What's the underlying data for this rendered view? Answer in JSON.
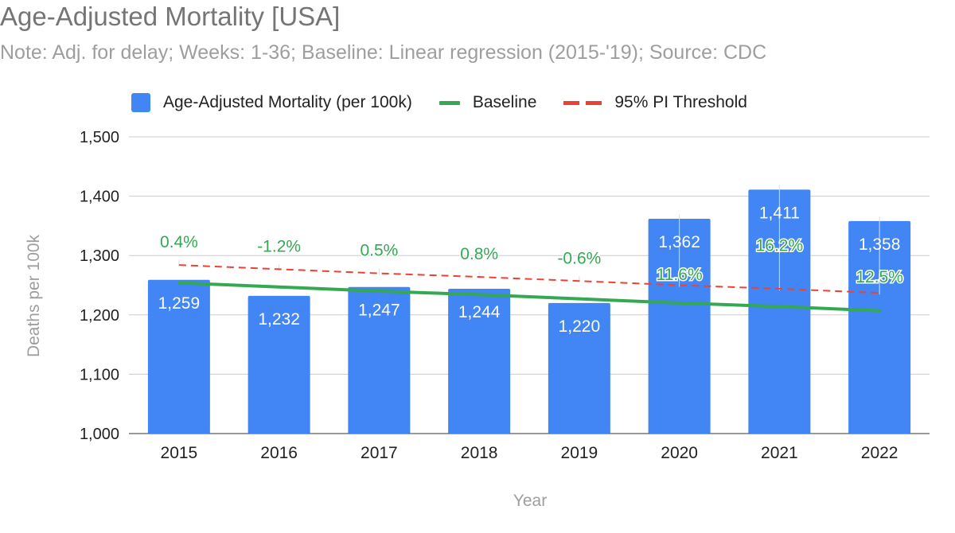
{
  "title": "Age-Adjusted Mortality [USA]",
  "subtitle": "Note: Adj. for delay; Weeks: 1-36; Baseline: Linear regression (2015-'19); Source: CDC",
  "colors": {
    "bars": "#4285f4",
    "baseline": "#34a853",
    "threshold": "#ea4335",
    "pct_label": "#34a853",
    "grid": "#cccccc",
    "axis_title": "#9e9e9e"
  },
  "legend": {
    "bars": "Age-Adjusted Mortality (per 100k)",
    "baseline": "Baseline",
    "threshold": "95% PI Threshold"
  },
  "chart_data": {
    "type": "bar",
    "title": "Age-Adjusted Mortality [USA]",
    "subtitle": "Note: Adj. for delay; Weeks: 1-36; Baseline: Linear regression (2015-'19); Source: CDC",
    "xlabel": "Year",
    "ylabel": "Deaths per 100k",
    "ylim": [
      1000,
      1500
    ],
    "yticks": [
      1000,
      1100,
      1200,
      1300,
      1400,
      1500
    ],
    "ytick_labels": [
      "1,000",
      "1,100",
      "1,200",
      "1,300",
      "1,400",
      "1,500"
    ],
    "grid": true,
    "legend_position": "top",
    "categories": [
      "2015",
      "2016",
      "2017",
      "2018",
      "2019",
      "2020",
      "2021",
      "2022"
    ],
    "series": [
      {
        "name": "Age-Adjusted Mortality (per 100k)",
        "type": "bar",
        "values": [
          1259,
          1232,
          1247,
          1244,
          1220,
          1362,
          1411,
          1358
        ],
        "labels": [
          "1,259",
          "1,232",
          "1,247",
          "1,244",
          "1,220",
          "1,362",
          "1,411",
          "1,358"
        ]
      },
      {
        "name": "Baseline",
        "type": "line",
        "values": [
          1254,
          1247,
          1240,
          1234,
          1227,
          1220,
          1214,
          1207
        ]
      },
      {
        "name": "95% PI Threshold",
        "type": "line",
        "style": "dashed",
        "values": [
          1284,
          1277,
          1270,
          1264,
          1257,
          1250,
          1244,
          1237
        ]
      }
    ],
    "excess_labels": [
      "0.4%",
      "-1.2%",
      "0.5%",
      "0.8%",
      "-0.6%",
      "11.6%",
      "16.2%",
      "12.5%"
    ]
  }
}
